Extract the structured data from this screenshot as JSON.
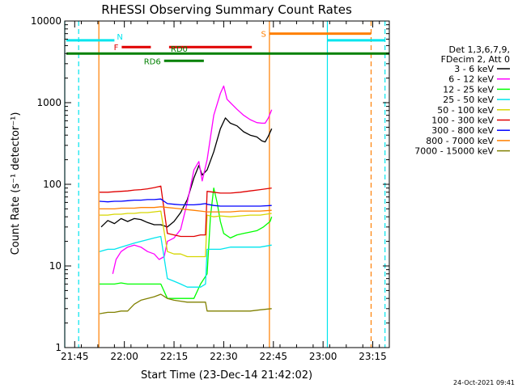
{
  "colors": {
    "background": "#ffffff",
    "axes": "#000000",
    "cyan": "#00e5ee",
    "orange": "#ff7f00",
    "red": "#e00000",
    "green": "#008000",
    "magenta": "#ff00ff",
    "lime": "#00ff00",
    "yellow": "#d6d600",
    "blue": "#0000ff",
    "olive": "#808000",
    "black": "#000000"
  },
  "footer_stamp": "24-Oct-2021 09:41",
  "chart_data": {
    "type": "line",
    "title": "RHESSI Observing Summary Count Rates",
    "xlabel": "Start Time (23-Dec-14 21:42:02)",
    "ylabel": "Count Rate (s⁻¹ detector⁻¹)",
    "x_unit": "minutes since 21:42:02",
    "xlim": [
      0,
      98
    ],
    "ylim": [
      1,
      10000
    ],
    "y_scale": "log",
    "x_ticks": [
      {
        "value": 3,
        "label": "21:45"
      },
      {
        "value": 18,
        "label": "22:00"
      },
      {
        "value": 33,
        "label": "22:15"
      },
      {
        "value": 48,
        "label": "22:30"
      },
      {
        "value": 63,
        "label": "22:45"
      },
      {
        "value": 78,
        "label": "23:00"
      },
      {
        "value": 93,
        "label": "23:15"
      }
    ],
    "y_ticks": [
      {
        "value": 1,
        "label": "1"
      },
      {
        "value": 10,
        "label": "10"
      },
      {
        "value": 100,
        "label": "100"
      },
      {
        "value": 1000,
        "label": "1000"
      },
      {
        "value": 10000,
        "label": "10000"
      }
    ],
    "legend": {
      "placement": "right",
      "header": [
        "Det 1,3,6,7,9,",
        "FDecim 2, Att 0"
      ]
    },
    "series": [
      {
        "name": "3 - 6 keV",
        "color": "#000000",
        "points": [
          [
            11,
            30
          ],
          [
            13,
            36
          ],
          [
            15,
            33
          ],
          [
            17,
            38
          ],
          [
            19,
            35
          ],
          [
            21,
            38
          ],
          [
            23,
            37
          ],
          [
            25,
            34
          ],
          [
            27,
            32
          ],
          [
            29,
            32
          ],
          [
            31,
            30
          ],
          [
            33,
            35
          ],
          [
            35,
            45
          ],
          [
            37,
            65
          ],
          [
            39,
            120
          ],
          [
            40.5,
            170
          ],
          [
            41.5,
            130
          ],
          [
            43,
            150
          ],
          [
            45,
            250
          ],
          [
            47,
            480
          ],
          [
            48.5,
            650
          ],
          [
            50,
            560
          ],
          [
            52,
            520
          ],
          [
            54,
            440
          ],
          [
            56,
            400
          ],
          [
            58,
            380
          ],
          [
            59.5,
            340
          ],
          [
            60.5,
            330
          ],
          [
            61.5,
            390
          ],
          [
            62.5,
            480
          ]
        ]
      },
      {
        "name": "6 - 12 keV",
        "color": "#ff00ff",
        "points": [
          [
            14.5,
            8
          ],
          [
            15.5,
            12
          ],
          [
            17,
            15
          ],
          [
            19,
            17
          ],
          [
            21,
            18
          ],
          [
            23,
            17
          ],
          [
            25,
            15
          ],
          [
            27,
            14
          ],
          [
            28.5,
            12
          ],
          [
            30,
            13
          ],
          [
            31,
            20
          ],
          [
            33,
            22
          ],
          [
            35,
            28
          ],
          [
            37,
            60
          ],
          [
            39,
            150
          ],
          [
            40.5,
            190
          ],
          [
            41.5,
            110
          ],
          [
            43,
            200
          ],
          [
            45,
            700
          ],
          [
            47,
            1300
          ],
          [
            48,
            1600
          ],
          [
            49,
            1100
          ],
          [
            50,
            1000
          ],
          [
            52,
            830
          ],
          [
            54,
            700
          ],
          [
            56,
            620
          ],
          [
            58,
            570
          ],
          [
            59.5,
            560
          ],
          [
            60.5,
            560
          ],
          [
            61.5,
            650
          ],
          [
            62.5,
            820
          ]
        ]
      },
      {
        "name": "12 - 25 keV",
        "color": "#00ff00",
        "points": [
          [
            10.5,
            6
          ],
          [
            13,
            6
          ],
          [
            15,
            6
          ],
          [
            17,
            6.2
          ],
          [
            19,
            6
          ],
          [
            21,
            6
          ],
          [
            23,
            6
          ],
          [
            25,
            6
          ],
          [
            27,
            6
          ],
          [
            29,
            6
          ],
          [
            31,
            4
          ],
          [
            33,
            4
          ],
          [
            35,
            4
          ],
          [
            37,
            4
          ],
          [
            39,
            4
          ],
          [
            41,
            6
          ],
          [
            43,
            8
          ],
          [
            44,
            40
          ],
          [
            45,
            90
          ],
          [
            46,
            60
          ],
          [
            47,
            35
          ],
          [
            48,
            25
          ],
          [
            50,
            22
          ],
          [
            52,
            24
          ],
          [
            54,
            25
          ],
          [
            56,
            26
          ],
          [
            58,
            27
          ],
          [
            60,
            30
          ],
          [
            62,
            35
          ],
          [
            62.5,
            40
          ]
        ]
      },
      {
        "name": "25 - 50 keV",
        "color": "#00e5ee",
        "points": [
          [
            10.5,
            15
          ],
          [
            13,
            16
          ],
          [
            15,
            16
          ],
          [
            17,
            17
          ],
          [
            19,
            18
          ],
          [
            21,
            19
          ],
          [
            23,
            20
          ],
          [
            25,
            21
          ],
          [
            27,
            22
          ],
          [
            29,
            23
          ],
          [
            31,
            7
          ],
          [
            33,
            6.5
          ],
          [
            35,
            6
          ],
          [
            37,
            5.5
          ],
          [
            39,
            5.5
          ],
          [
            41,
            5.5
          ],
          [
            42.5,
            6
          ],
          [
            43,
            16
          ],
          [
            45,
            16
          ],
          [
            47,
            16
          ],
          [
            50,
            17
          ],
          [
            53,
            17
          ],
          [
            56,
            17
          ],
          [
            59,
            17
          ],
          [
            62.5,
            18
          ]
        ]
      },
      {
        "name": "50 - 100 keV",
        "color": "#d6d600",
        "points": [
          [
            10.5,
            42
          ],
          [
            13,
            42
          ],
          [
            15,
            43
          ],
          [
            17,
            43
          ],
          [
            19,
            44
          ],
          [
            21,
            44
          ],
          [
            23,
            45
          ],
          [
            25,
            45
          ],
          [
            27,
            46
          ],
          [
            29,
            47
          ],
          [
            31,
            15
          ],
          [
            33,
            14
          ],
          [
            35,
            14
          ],
          [
            37,
            13
          ],
          [
            39,
            13
          ],
          [
            41,
            13
          ],
          [
            42.5,
            13
          ],
          [
            43,
            42
          ],
          [
            45,
            40
          ],
          [
            47,
            41
          ],
          [
            50,
            40
          ],
          [
            53,
            41
          ],
          [
            56,
            42
          ],
          [
            59,
            42
          ],
          [
            62.5,
            44
          ]
        ]
      },
      {
        "name": "100 - 300 keV",
        "color": "#e00000",
        "points": [
          [
            10.5,
            80
          ],
          [
            13,
            80
          ],
          [
            15,
            81
          ],
          [
            17,
            82
          ],
          [
            19,
            83
          ],
          [
            21,
            85
          ],
          [
            23,
            86
          ],
          [
            25,
            88
          ],
          [
            27,
            91
          ],
          [
            29,
            95
          ],
          [
            31,
            25
          ],
          [
            33,
            24
          ],
          [
            35,
            23
          ],
          [
            37,
            23
          ],
          [
            39,
            23
          ],
          [
            41,
            24
          ],
          [
            42.5,
            24
          ],
          [
            43,
            82
          ],
          [
            45,
            80
          ],
          [
            47,
            78
          ],
          [
            50,
            78
          ],
          [
            53,
            80
          ],
          [
            56,
            83
          ],
          [
            59,
            86
          ],
          [
            62.5,
            90
          ]
        ]
      },
      {
        "name": "300 - 800 keV",
        "color": "#0000ff",
        "points": [
          [
            10.5,
            62
          ],
          [
            13,
            61
          ],
          [
            15,
            62
          ],
          [
            17,
            62
          ],
          [
            19,
            63
          ],
          [
            21,
            64
          ],
          [
            23,
            64
          ],
          [
            25,
            65
          ],
          [
            27,
            65
          ],
          [
            29,
            66
          ],
          [
            31,
            58
          ],
          [
            33,
            57
          ],
          [
            35,
            56
          ],
          [
            37,
            56
          ],
          [
            39,
            56
          ],
          [
            41,
            57
          ],
          [
            42.5,
            58
          ],
          [
            43,
            57
          ],
          [
            45,
            55
          ],
          [
            47,
            54
          ],
          [
            50,
            54
          ],
          [
            53,
            54
          ],
          [
            56,
            54
          ],
          [
            59,
            54
          ],
          [
            62.5,
            55
          ]
        ]
      },
      {
        "name": "800 - 7000 keV",
        "color": "#ff7f00",
        "points": [
          [
            10.5,
            50
          ],
          [
            13,
            50
          ],
          [
            15,
            50
          ],
          [
            17,
            51
          ],
          [
            19,
            51
          ],
          [
            21,
            51
          ],
          [
            23,
            52
          ],
          [
            25,
            52
          ],
          [
            27,
            52
          ],
          [
            29,
            53
          ],
          [
            31,
            52
          ],
          [
            33,
            51
          ],
          [
            35,
            50
          ],
          [
            37,
            49
          ],
          [
            39,
            48
          ],
          [
            41,
            47
          ],
          [
            43,
            46
          ],
          [
            45,
            46
          ],
          [
            47,
            46
          ],
          [
            50,
            46
          ],
          [
            53,
            47
          ],
          [
            56,
            47
          ],
          [
            59,
            47
          ],
          [
            62.5,
            48
          ]
        ]
      },
      {
        "name": "7000 - 15000 keV",
        "color": "#808000",
        "points": [
          [
            10.5,
            2.6
          ],
          [
            13,
            2.7
          ],
          [
            15,
            2.7
          ],
          [
            17,
            2.8
          ],
          [
            19,
            2.8
          ],
          [
            21,
            3.4
          ],
          [
            23,
            3.8
          ],
          [
            25,
            4.0
          ],
          [
            27,
            4.2
          ],
          [
            29,
            4.5
          ],
          [
            31,
            4.0
          ],
          [
            33,
            3.8
          ],
          [
            35,
            3.7
          ],
          [
            37,
            3.6
          ],
          [
            39,
            3.6
          ],
          [
            41,
            3.6
          ],
          [
            42.5,
            3.6
          ],
          [
            43,
            2.8
          ],
          [
            45,
            2.8
          ],
          [
            47,
            2.8
          ],
          [
            50,
            2.8
          ],
          [
            53,
            2.8
          ],
          [
            56,
            2.8
          ],
          [
            59,
            2.9
          ],
          [
            62.5,
            3.0
          ]
        ]
      }
    ],
    "vertical_markers": [
      {
        "x": 0,
        "color": "#00e5ee",
        "style": "solid"
      },
      {
        "x": 4.2,
        "color": "#00e5ee",
        "style": "dashed"
      },
      {
        "x": 10.3,
        "color": "#ff7f00",
        "style": "solid"
      },
      {
        "x": 61.8,
        "color": "#ff7f00",
        "style": "solid"
      },
      {
        "x": 79.3,
        "color": "#00e5ee",
        "style": "solid"
      },
      {
        "x": 92.5,
        "color": "#ff7f00",
        "style": "dashed"
      },
      {
        "x": 96.7,
        "color": "#00e5ee",
        "style": "dashed"
      }
    ],
    "flag_bars": [
      {
        "label": "N",
        "color": "#00e5ee",
        "label_position": "end",
        "level": 5800,
        "segments": [
          [
            0.5,
            15
          ],
          [
            79.3,
            96.8
          ]
        ]
      },
      {
        "label": "S",
        "color": "#ff7f00",
        "label_position": "start",
        "level": 7000,
        "segments": [
          [
            61.8,
            92.5
          ]
        ]
      },
      {
        "label": "F",
        "color": "#e00000",
        "label_position": "start",
        "level": 4800,
        "segments": [
          [
            17.2,
            26
          ],
          [
            31.5,
            56.5
          ]
        ]
      },
      {
        "label": "RD0",
        "color": "#008000",
        "label_position": "above",
        "level": 4000,
        "segments": [
          [
            0.5,
            98
          ]
        ]
      },
      {
        "label": "RD6",
        "color": "#008000",
        "label_position": "start",
        "level": 3250,
        "segments": [
          [
            30,
            42
          ]
        ]
      }
    ]
  }
}
